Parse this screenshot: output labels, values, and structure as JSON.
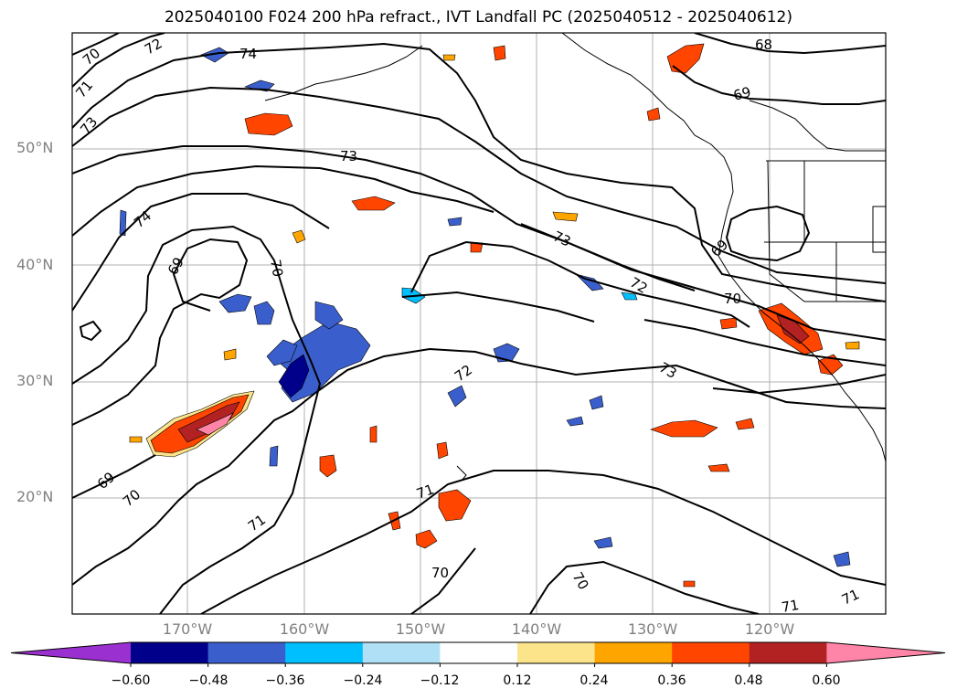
{
  "title": "2025040100 F024 200 hPa refract., IVT Landfall PC (2025040512 - 2025040612)",
  "lat_labels": [
    "50°N",
    "40°N",
    "30°N",
    "20°N"
  ],
  "lon_labels": [
    "170°W",
    "160°W",
    "150°W",
    "140°W",
    "130°W",
    "120°W"
  ],
  "contour_labels": [
    "70",
    "72",
    "74",
    "71",
    "73",
    "73",
    "74",
    "69",
    "70",
    "68",
    "69",
    "69",
    "70",
    "73",
    "72",
    "72",
    "73",
    "69",
    "70",
    "71",
    "71",
    "70",
    "70",
    "71",
    "71"
  ],
  "colorbar": {
    "ticks": [
      "−0.60",
      "−0.48",
      "−0.36",
      "−0.24",
      "−0.12",
      "0.12",
      "0.24",
      "0.36",
      "0.48",
      "0.60"
    ],
    "colors": [
      "#9b30d0",
      "#00008b",
      "#3a5fcd",
      "#00bfff",
      "#b0e0f5",
      "#ffffff",
      "#fbe48a",
      "#ffa500",
      "#ff4500",
      "#b22222",
      "#ff85a8"
    ]
  }
}
